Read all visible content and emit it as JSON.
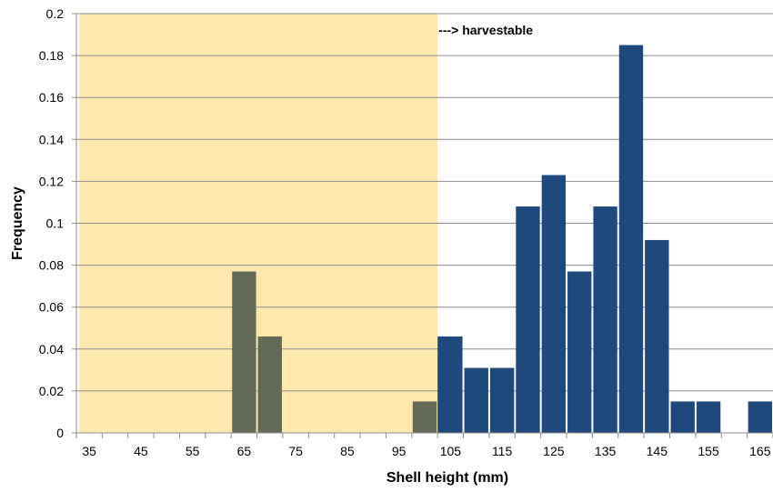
{
  "chart_data": {
    "type": "bar",
    "title": "",
    "xlabel": "Shell height (mm)",
    "ylabel": "Frequency",
    "ylim": [
      0,
      0.2
    ],
    "yticks": [
      0,
      0.02,
      0.04,
      0.06,
      0.08,
      0.1,
      0.12,
      0.14,
      0.16,
      0.18,
      0.2
    ],
    "ytick_labels": [
      "0",
      "0.02",
      "0.04",
      "0.06",
      "0.08",
      "0.1",
      "0.12",
      "0.14",
      "0.16",
      "0.18",
      "0.2"
    ],
    "xlim": [
      32.5,
      167.5
    ],
    "xtick_labels": [
      "35",
      "45",
      "55",
      "65",
      "75",
      "85",
      "95",
      "105",
      "115",
      "125",
      "135",
      "145",
      "155",
      "165"
    ],
    "bin_width": 5,
    "grid": true,
    "shaded_region": {
      "x_range": [
        32.5,
        102.5
      ],
      "color": "#fde8ae",
      "label": "---> harvestable"
    },
    "colors": {
      "below_threshold": "#636a58",
      "harvestable": "#1f497d"
    },
    "bins": [
      {
        "x": 35,
        "value": 0
      },
      {
        "x": 40,
        "value": 0
      },
      {
        "x": 45,
        "value": 0
      },
      {
        "x": 50,
        "value": 0
      },
      {
        "x": 55,
        "value": 0
      },
      {
        "x": 60,
        "value": 0
      },
      {
        "x": 65,
        "value": 0.077,
        "group": "below"
      },
      {
        "x": 70,
        "value": 0.046,
        "group": "below"
      },
      {
        "x": 75,
        "value": 0
      },
      {
        "x": 80,
        "value": 0
      },
      {
        "x": 85,
        "value": 0
      },
      {
        "x": 90,
        "value": 0
      },
      {
        "x": 95,
        "value": 0
      },
      {
        "x": 100,
        "value": 0.015,
        "group": "below"
      },
      {
        "x": 105,
        "value": 0.046,
        "group": "split"
      },
      {
        "x": 110,
        "value": 0.031,
        "group": "harvestable"
      },
      {
        "x": 115,
        "value": 0.031,
        "group": "harvestable"
      },
      {
        "x": 120,
        "value": 0.108,
        "group": "harvestable"
      },
      {
        "x": 125,
        "value": 0.123,
        "group": "harvestable"
      },
      {
        "x": 130,
        "value": 0.077,
        "group": "harvestable"
      },
      {
        "x": 135,
        "value": 0.108,
        "group": "harvestable"
      },
      {
        "x": 140,
        "value": 0.185,
        "group": "harvestable"
      },
      {
        "x": 145,
        "value": 0.092,
        "group": "harvestable"
      },
      {
        "x": 150,
        "value": 0.015,
        "group": "harvestable"
      },
      {
        "x": 155,
        "value": 0.015,
        "group": "harvestable"
      },
      {
        "x": 160,
        "value": 0
      },
      {
        "x": 165,
        "value": 0.015,
        "group": "harvestable"
      }
    ]
  }
}
